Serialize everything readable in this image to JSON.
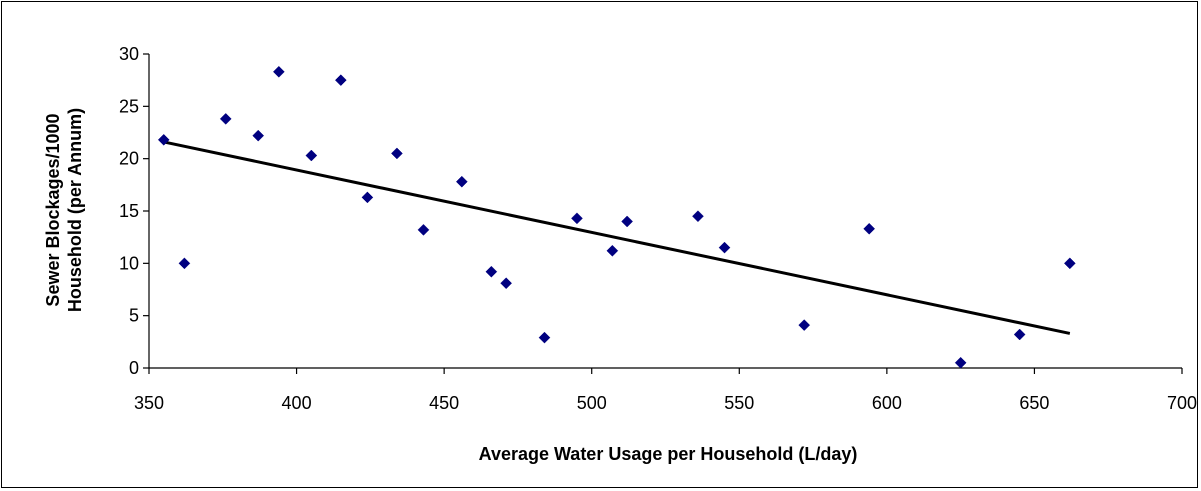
{
  "chart_data": {
    "type": "scatter",
    "title": "",
    "xlabel": "Average Water Usage per Household (L/day)",
    "ylabel_line1": "Sewer Blockages/1000",
    "ylabel_line2": "Household (per Annum)",
    "xlim": [
      350,
      700
    ],
    "ylim": [
      0,
      30
    ],
    "x_ticks": [
      350,
      400,
      450,
      500,
      550,
      600,
      650,
      700
    ],
    "y_ticks": [
      0,
      5,
      10,
      15,
      20,
      25,
      30
    ],
    "grid": false,
    "legend": "none",
    "marker": "diamond",
    "marker_color": "#000080",
    "points": [
      {
        "x": 355,
        "y": 21.8
      },
      {
        "x": 362,
        "y": 10.0
      },
      {
        "x": 376,
        "y": 23.8
      },
      {
        "x": 387,
        "y": 22.2
      },
      {
        "x": 394,
        "y": 28.3
      },
      {
        "x": 405,
        "y": 20.3
      },
      {
        "x": 415,
        "y": 27.5
      },
      {
        "x": 424,
        "y": 16.3
      },
      {
        "x": 434,
        "y": 20.5
      },
      {
        "x": 443,
        "y": 13.2
      },
      {
        "x": 456,
        "y": 17.8
      },
      {
        "x": 466,
        "y": 9.2
      },
      {
        "x": 471,
        "y": 8.1
      },
      {
        "x": 484,
        "y": 2.9
      },
      {
        "x": 495,
        "y": 14.3
      },
      {
        "x": 507,
        "y": 11.2
      },
      {
        "x": 512,
        "y": 14.0
      },
      {
        "x": 536,
        "y": 14.5
      },
      {
        "x": 545,
        "y": 11.5
      },
      {
        "x": 572,
        "y": 4.1
      },
      {
        "x": 594,
        "y": 13.3
      },
      {
        "x": 625,
        "y": 0.5
      },
      {
        "x": 645,
        "y": 3.2
      },
      {
        "x": 662,
        "y": 10.0
      }
    ],
    "trendline": {
      "type": "linear",
      "color": "#000000",
      "x": [
        355,
        662
      ],
      "y": [
        21.6,
        3.3
      ]
    }
  }
}
